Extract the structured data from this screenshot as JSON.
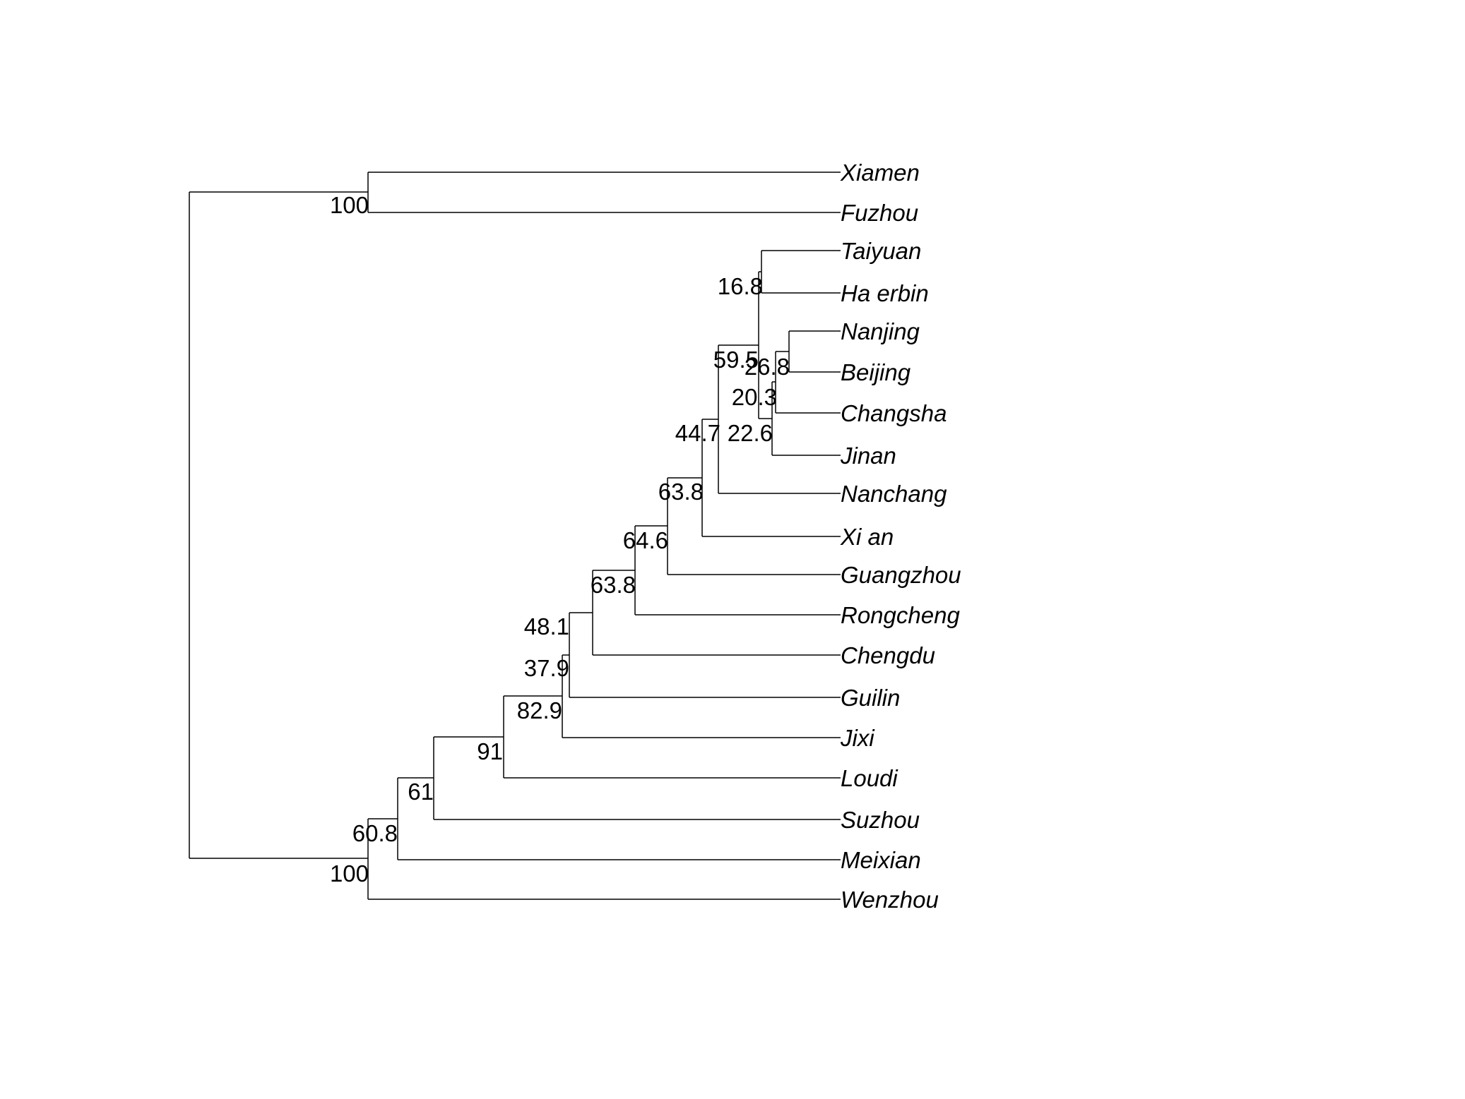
{
  "tips": [
    "Xiamen",
    "Fuzhou",
    "Taiyuan",
    "Ha erbin",
    "Nanjing",
    "Beijing",
    "Changsha",
    "Jinan",
    "Nanchang",
    "Xi an",
    "Guangzhou",
    "Rongcheng",
    "Chengdu",
    "Guilin",
    "Jixi",
    "Loudi",
    "Suzhou",
    "Meixian",
    "Wenzhou"
  ],
  "support_values": [
    "100",
    "16.8",
    "59.5",
    "26.8",
    "20.3",
    "44.7",
    "22.6",
    "63.8",
    "64.6",
    "63.8",
    "48.1",
    "37.9",
    "82.9",
    "91",
    "61",
    "60.8",
    "100"
  ],
  "colors": {
    "branch": "#000000",
    "text": "#000000",
    "background": "#ffffff"
  }
}
